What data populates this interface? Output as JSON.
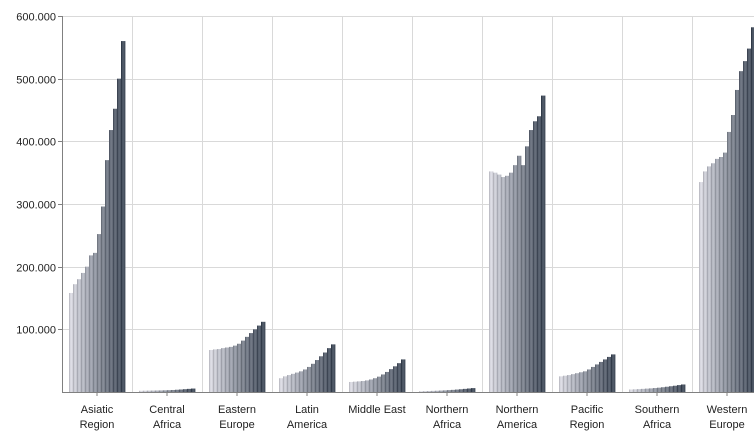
{
  "chart_data": {
    "type": "bar",
    "title": "",
    "xlabel": "",
    "ylabel": "",
    "ylim": [
      0,
      600000
    ],
    "yticks": [
      {
        "value": 100000,
        "label": "100.000"
      },
      {
        "value": 200000,
        "label": "200.000"
      },
      {
        "value": 300000,
        "label": "300.000"
      },
      {
        "value": 400000,
        "label": "400.000"
      },
      {
        "value": 500000,
        "label": "500.000"
      },
      {
        "value": 600000,
        "label": "600.000"
      }
    ],
    "grid": true,
    "legend": "none",
    "colors": {
      "light": "#c8c8d0",
      "dark": "#3a4452"
    },
    "categories": [
      {
        "label": [
          "Asiatic",
          "Region"
        ],
        "values": [
          158000,
          172000,
          180000,
          190000,
          200000,
          218000,
          222000,
          252000,
          296000,
          370000,
          418000,
          452000,
          500000,
          560000
        ]
      },
      {
        "label": [
          "Central",
          "Africa"
        ],
        "values": [
          2000,
          2100,
          2200,
          2300,
          2400,
          2500,
          2700,
          2900,
          3200,
          3600,
          4000,
          4500,
          5000,
          5500
        ]
      },
      {
        "label": [
          "Eastern",
          "Europe"
        ],
        "values": [
          67000,
          68000,
          68500,
          70000,
          71000,
          72000,
          74000,
          77000,
          82000,
          88000,
          94000,
          100000,
          106000,
          112000
        ]
      },
      {
        "label": [
          "Latin",
          "America"
        ],
        "values": [
          22000,
          25000,
          27000,
          29000,
          31000,
          33000,
          36000,
          40000,
          45000,
          51000,
          57000,
          63000,
          70000,
          76000
        ]
      },
      {
        "label": [
          "Middle East"
        ],
        "values": [
          16000,
          16500,
          17000,
          17500,
          18500,
          20000,
          22000,
          24500,
          28000,
          32000,
          36500,
          41000,
          46000,
          52000
        ]
      },
      {
        "label": [
          "Northern",
          "Africa"
        ],
        "values": [
          1200,
          1400,
          1600,
          1800,
          2000,
          2300,
          2600,
          3000,
          3400,
          3900,
          4400,
          5000,
          5600,
          6200
        ]
      },
      {
        "label": [
          "Northern",
          "America"
        ],
        "values": [
          352000,
          350000,
          347000,
          343000,
          345000,
          350000,
          362000,
          377000,
          362000,
          392000,
          418000,
          432000,
          440000,
          473000
        ]
      },
      {
        "label": [
          "Pacific",
          "Region"
        ],
        "values": [
          25000,
          26000,
          27000,
          28500,
          30000,
          31500,
          33000,
          36000,
          40000,
          44000,
          48000,
          52000,
          56000,
          60000
        ]
      },
      {
        "label": [
          "Southern",
          "Africa"
        ],
        "values": [
          4000,
          4300,
          4600,
          5000,
          5400,
          5800,
          6300,
          6900,
          7600,
          8400,
          9200,
          10000,
          11000,
          12000
        ]
      },
      {
        "label": [
          "Western",
          "Europe"
        ],
        "values": [
          335000,
          352000,
          360000,
          365000,
          372000,
          375000,
          382000,
          415000,
          442000,
          482000,
          512000,
          528000,
          548000,
          582000
        ]
      }
    ]
  }
}
